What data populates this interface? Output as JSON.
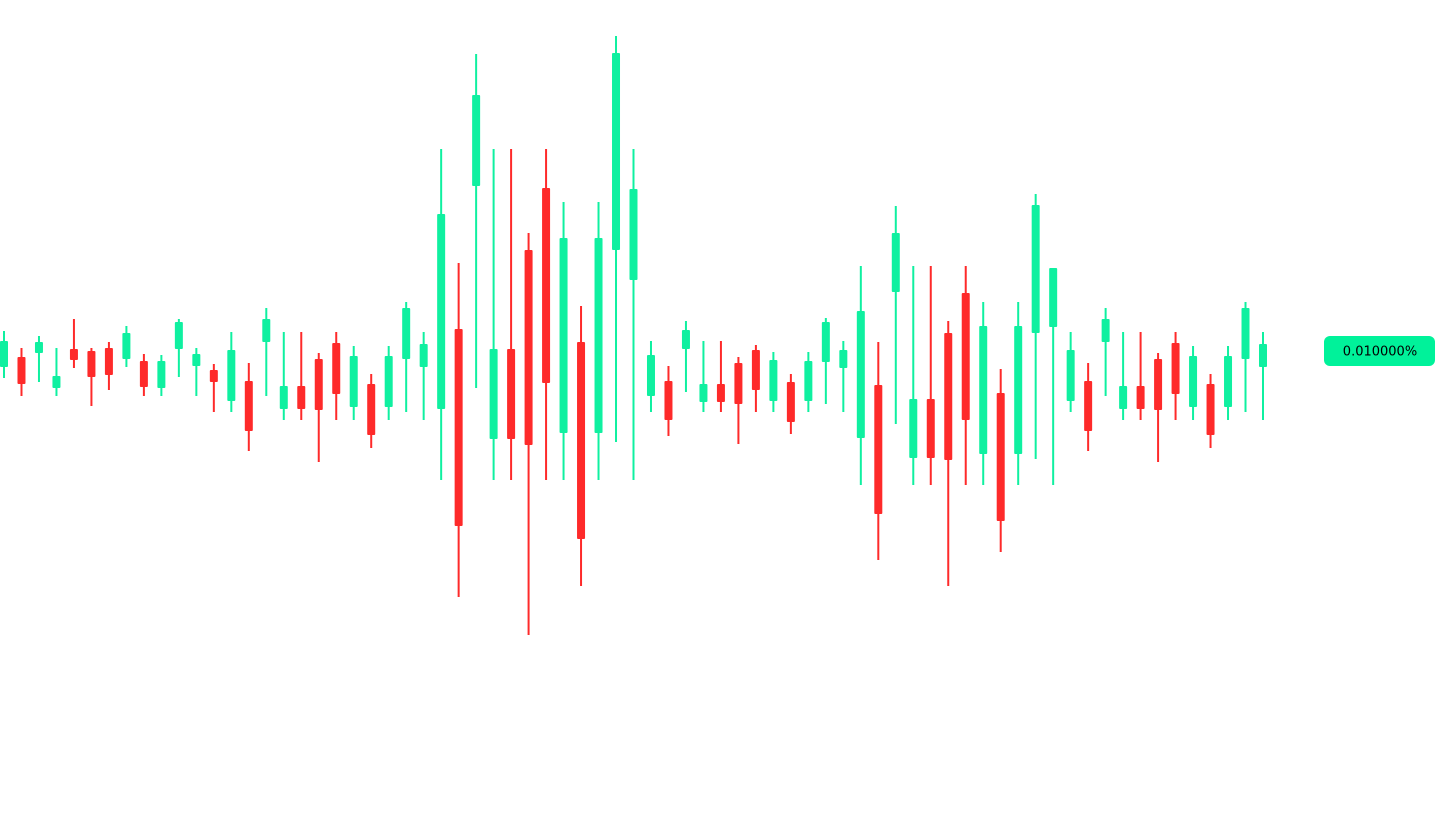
{
  "chart_data": {
    "type": "candlestick",
    "ylim": [
      0.0055,
      0.0135
    ],
    "up_color": "#0ff0a0",
    "down_color": "#fe2a2a",
    "last_price": {
      "value": 0.01,
      "label": "0.010000%"
    },
    "label_color": "#00f29a",
    "open": [
      0.00984,
      0.00994,
      0.00998,
      0.00963,
      0.01002,
      0.01,
      0.01003,
      0.00992,
      0.0099,
      0.00963,
      0.01002,
      0.00985,
      0.00981,
      0.0095,
      0.0097,
      0.01009,
      0.00942,
      0.00965,
      0.00992,
      0.01008,
      0.00944,
      0.00967,
      0.00944,
      0.00992,
      0.00984,
      0.00942,
      0.01022,
      0.01165,
      0.00912,
      0.01002,
      0.01101,
      0.01163,
      0.00918,
      0.01009,
      0.00918,
      0.01101,
      0.01071,
      0.00955,
      0.0097,
      0.01002,
      0.00949,
      0.00967,
      0.00988,
      0.01001,
      0.0095,
      0.00969,
      0.0095,
      0.00989,
      0.00983,
      0.00913,
      0.00966,
      0.01059,
      0.00893,
      0.00952,
      0.01018,
      0.01058,
      0.00897,
      0.00958,
      0.00897,
      0.01018,
      0.01024,
      0.0095,
      0.0097,
      0.01009,
      0.00942,
      0.00965,
      0.00992,
      0.01008,
      0.00944,
      0.00967,
      0.00944,
      0.00992,
      0.00984
    ],
    "high": [
      0.0102,
      0.01003,
      0.01015,
      0.01003,
      0.01032,
      0.01003,
      0.01009,
      0.01025,
      0.00997,
      0.00996,
      0.01032,
      0.01003,
      0.00987,
      0.01019,
      0.00988,
      0.01043,
      0.01019,
      0.01019,
      0.00998,
      0.01019,
      0.01005,
      0.00977,
      0.01005,
      0.01049,
      0.01019,
      0.01202,
      0.01088,
      0.01297,
      0.01202,
      0.01202,
      0.01118,
      0.01202,
      0.01149,
      0.01045,
      0.01149,
      0.01315,
      0.01202,
      0.0101,
      0.00985,
      0.0103,
      0.0101,
      0.0101,
      0.00994,
      0.01006,
      0.00999,
      0.00977,
      0.00999,
      0.01033,
      0.0101,
      0.01085,
      0.01009,
      0.01145,
      0.01085,
      0.01085,
      0.0103,
      0.01085,
      0.01049,
      0.00982,
      0.01049,
      0.01157,
      0.01083,
      0.01019,
      0.00988,
      0.01043,
      0.01019,
      0.01019,
      0.00998,
      0.01019,
      0.01005,
      0.00977,
      0.01005,
      0.01049,
      0.01019
    ],
    "low": [
      0.00973,
      0.00955,
      0.00969,
      0.00955,
      0.00983,
      0.00945,
      0.00961,
      0.00984,
      0.00955,
      0.00955,
      0.00974,
      0.00955,
      0.00939,
      0.00939,
      0.009,
      0.00955,
      0.00931,
      0.00931,
      0.00889,
      0.00931,
      0.00931,
      0.00903,
      0.00931,
      0.00939,
      0.00931,
      0.00871,
      0.00754,
      0.00963,
      0.00871,
      0.00871,
      0.00716,
      0.00871,
      0.00871,
      0.00765,
      0.00871,
      0.00909,
      0.00871,
      0.00939,
      0.00915,
      0.00959,
      0.00939,
      0.00939,
      0.00907,
      0.00939,
      0.00939,
      0.00917,
      0.00939,
      0.00947,
      0.00939,
      0.00866,
      0.00791,
      0.00927,
      0.00866,
      0.00866,
      0.00765,
      0.00866,
      0.00866,
      0.00799,
      0.00866,
      0.00892,
      0.00866,
      0.00939,
      0.009,
      0.00955,
      0.00931,
      0.00931,
      0.00889,
      0.00931,
      0.00931,
      0.00903,
      0.00931,
      0.00939,
      0.00931
    ],
    "close": [
      0.0101,
      0.00967,
      0.01009,
      0.00975,
      0.00991,
      0.00974,
      0.00976,
      0.01018,
      0.00964,
      0.0099,
      0.01029,
      0.00997,
      0.00969,
      0.01001,
      0.0092,
      0.01032,
      0.00965,
      0.00942,
      0.00941,
      0.00957,
      0.00995,
      0.00916,
      0.00995,
      0.01043,
      0.01007,
      0.01137,
      0.00825,
      0.01256,
      0.01002,
      0.00912,
      0.00906,
      0.00968,
      0.01113,
      0.00812,
      0.01113,
      0.01298,
      0.01162,
      0.00996,
      0.00931,
      0.01021,
      0.00967,
      0.00949,
      0.00947,
      0.00961,
      0.00991,
      0.00929,
      0.0099,
      0.01029,
      0.01001,
      0.0104,
      0.00837,
      0.01118,
      0.00952,
      0.00893,
      0.00891,
      0.00931,
      0.01025,
      0.0083,
      0.01025,
      0.01146,
      0.01083,
      0.01001,
      0.0092,
      0.01032,
      0.00965,
      0.00942,
      0.00941,
      0.00957,
      0.00995,
      0.00916,
      0.00995,
      0.01043,
      0.01007
    ]
  }
}
